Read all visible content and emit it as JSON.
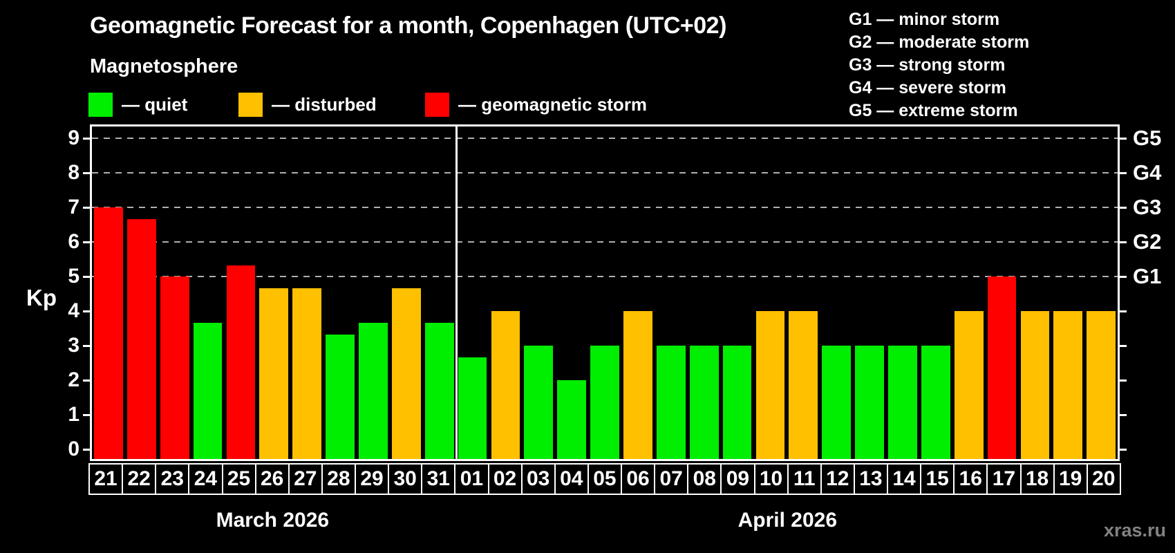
{
  "header": {
    "title": "Geomagnetic Forecast for a month, Copenhagen (UTC+02)",
    "subtitle": "Magnetosphere"
  },
  "legend": {
    "items": [
      {
        "key": "quiet",
        "label": "— quiet"
      },
      {
        "key": "disturbed",
        "label": "— disturbed"
      },
      {
        "key": "storm",
        "label": "— geomagnetic storm"
      }
    ]
  },
  "g_legend": {
    "items": [
      "G1 — minor storm",
      "G2 — moderate storm",
      "G3 — strong storm",
      "G4 — severe storm",
      "G5 — extreme storm"
    ]
  },
  "watermark": "xras.ru",
  "chart_data": {
    "type": "bar",
    "title": "Geomagnetic Forecast for a month, Copenhagen (UTC+02)",
    "xlabel": "",
    "ylabel": "Kp",
    "ylim": [
      0,
      9.4
    ],
    "yticks": [
      0,
      1,
      2,
      3,
      4,
      5,
      6,
      7,
      8,
      9
    ],
    "grid": "horizontal dashed lines at Kp 5,6,7,8,9 (G1–G5 levels)",
    "legend_position": "top",
    "g_scale": [
      {
        "label": "G1",
        "kp": 5
      },
      {
        "label": "G2",
        "kp": 6
      },
      {
        "label": "G3",
        "kp": 7
      },
      {
        "label": "G4",
        "kp": 8
      },
      {
        "label": "G5",
        "kp": 9
      }
    ],
    "months": [
      {
        "label": "March 2026",
        "days": 11
      },
      {
        "label": "April 2026",
        "days": 20
      }
    ],
    "colors": {
      "quiet": "#00EE00",
      "disturbed": "#FFC000",
      "storm": "#FF0000",
      "axis": "#FFFFFF",
      "grid": "#B0B0B0",
      "background": "#000000",
      "watermark": "#828282"
    },
    "bars": [
      {
        "day": "21",
        "month": "March 2026",
        "kp": 7.0,
        "level": "storm"
      },
      {
        "day": "22",
        "month": "March 2026",
        "kp": 6.67,
        "level": "storm"
      },
      {
        "day": "23",
        "month": "March 2026",
        "kp": 5.0,
        "level": "storm"
      },
      {
        "day": "24",
        "month": "March 2026",
        "kp": 3.67,
        "level": "quiet"
      },
      {
        "day": "25",
        "month": "March 2026",
        "kp": 5.33,
        "level": "storm"
      },
      {
        "day": "26",
        "month": "March 2026",
        "kp": 4.67,
        "level": "disturbed"
      },
      {
        "day": "27",
        "month": "March 2026",
        "kp": 4.67,
        "level": "disturbed"
      },
      {
        "day": "28",
        "month": "March 2026",
        "kp": 3.33,
        "level": "quiet"
      },
      {
        "day": "29",
        "month": "March 2026",
        "kp": 3.67,
        "level": "quiet"
      },
      {
        "day": "30",
        "month": "March 2026",
        "kp": 4.67,
        "level": "disturbed"
      },
      {
        "day": "31",
        "month": "March 2026",
        "kp": 3.67,
        "level": "quiet"
      },
      {
        "day": "01",
        "month": "April 2026",
        "kp": 2.67,
        "level": "quiet"
      },
      {
        "day": "02",
        "month": "April 2026",
        "kp": 4.0,
        "level": "disturbed"
      },
      {
        "day": "03",
        "month": "April 2026",
        "kp": 3.0,
        "level": "quiet"
      },
      {
        "day": "04",
        "month": "April 2026",
        "kp": 2.0,
        "level": "quiet"
      },
      {
        "day": "05",
        "month": "April 2026",
        "kp": 3.0,
        "level": "quiet"
      },
      {
        "day": "06",
        "month": "April 2026",
        "kp": 4.0,
        "level": "disturbed"
      },
      {
        "day": "07",
        "month": "April 2026",
        "kp": 3.0,
        "level": "quiet"
      },
      {
        "day": "08",
        "month": "April 2026",
        "kp": 3.0,
        "level": "quiet"
      },
      {
        "day": "09",
        "month": "April 2026",
        "kp": 3.0,
        "level": "quiet"
      },
      {
        "day": "10",
        "month": "April 2026",
        "kp": 4.0,
        "level": "disturbed"
      },
      {
        "day": "11",
        "month": "April 2026",
        "kp": 4.0,
        "level": "disturbed"
      },
      {
        "day": "12",
        "month": "April 2026",
        "kp": 3.0,
        "level": "quiet"
      },
      {
        "day": "13",
        "month": "April 2026",
        "kp": 3.0,
        "level": "quiet"
      },
      {
        "day": "14",
        "month": "April 2026",
        "kp": 3.0,
        "level": "quiet"
      },
      {
        "day": "15",
        "month": "April 2026",
        "kp": 3.0,
        "level": "quiet"
      },
      {
        "day": "16",
        "month": "April 2026",
        "kp": 4.0,
        "level": "disturbed"
      },
      {
        "day": "17",
        "month": "April 2026",
        "kp": 5.0,
        "level": "storm"
      },
      {
        "day": "18",
        "month": "April 2026",
        "kp": 4.0,
        "level": "disturbed"
      },
      {
        "day": "19",
        "month": "April 2026",
        "kp": 4.0,
        "level": "disturbed"
      },
      {
        "day": "20",
        "month": "April 2026",
        "kp": 4.0,
        "level": "disturbed"
      }
    ]
  }
}
